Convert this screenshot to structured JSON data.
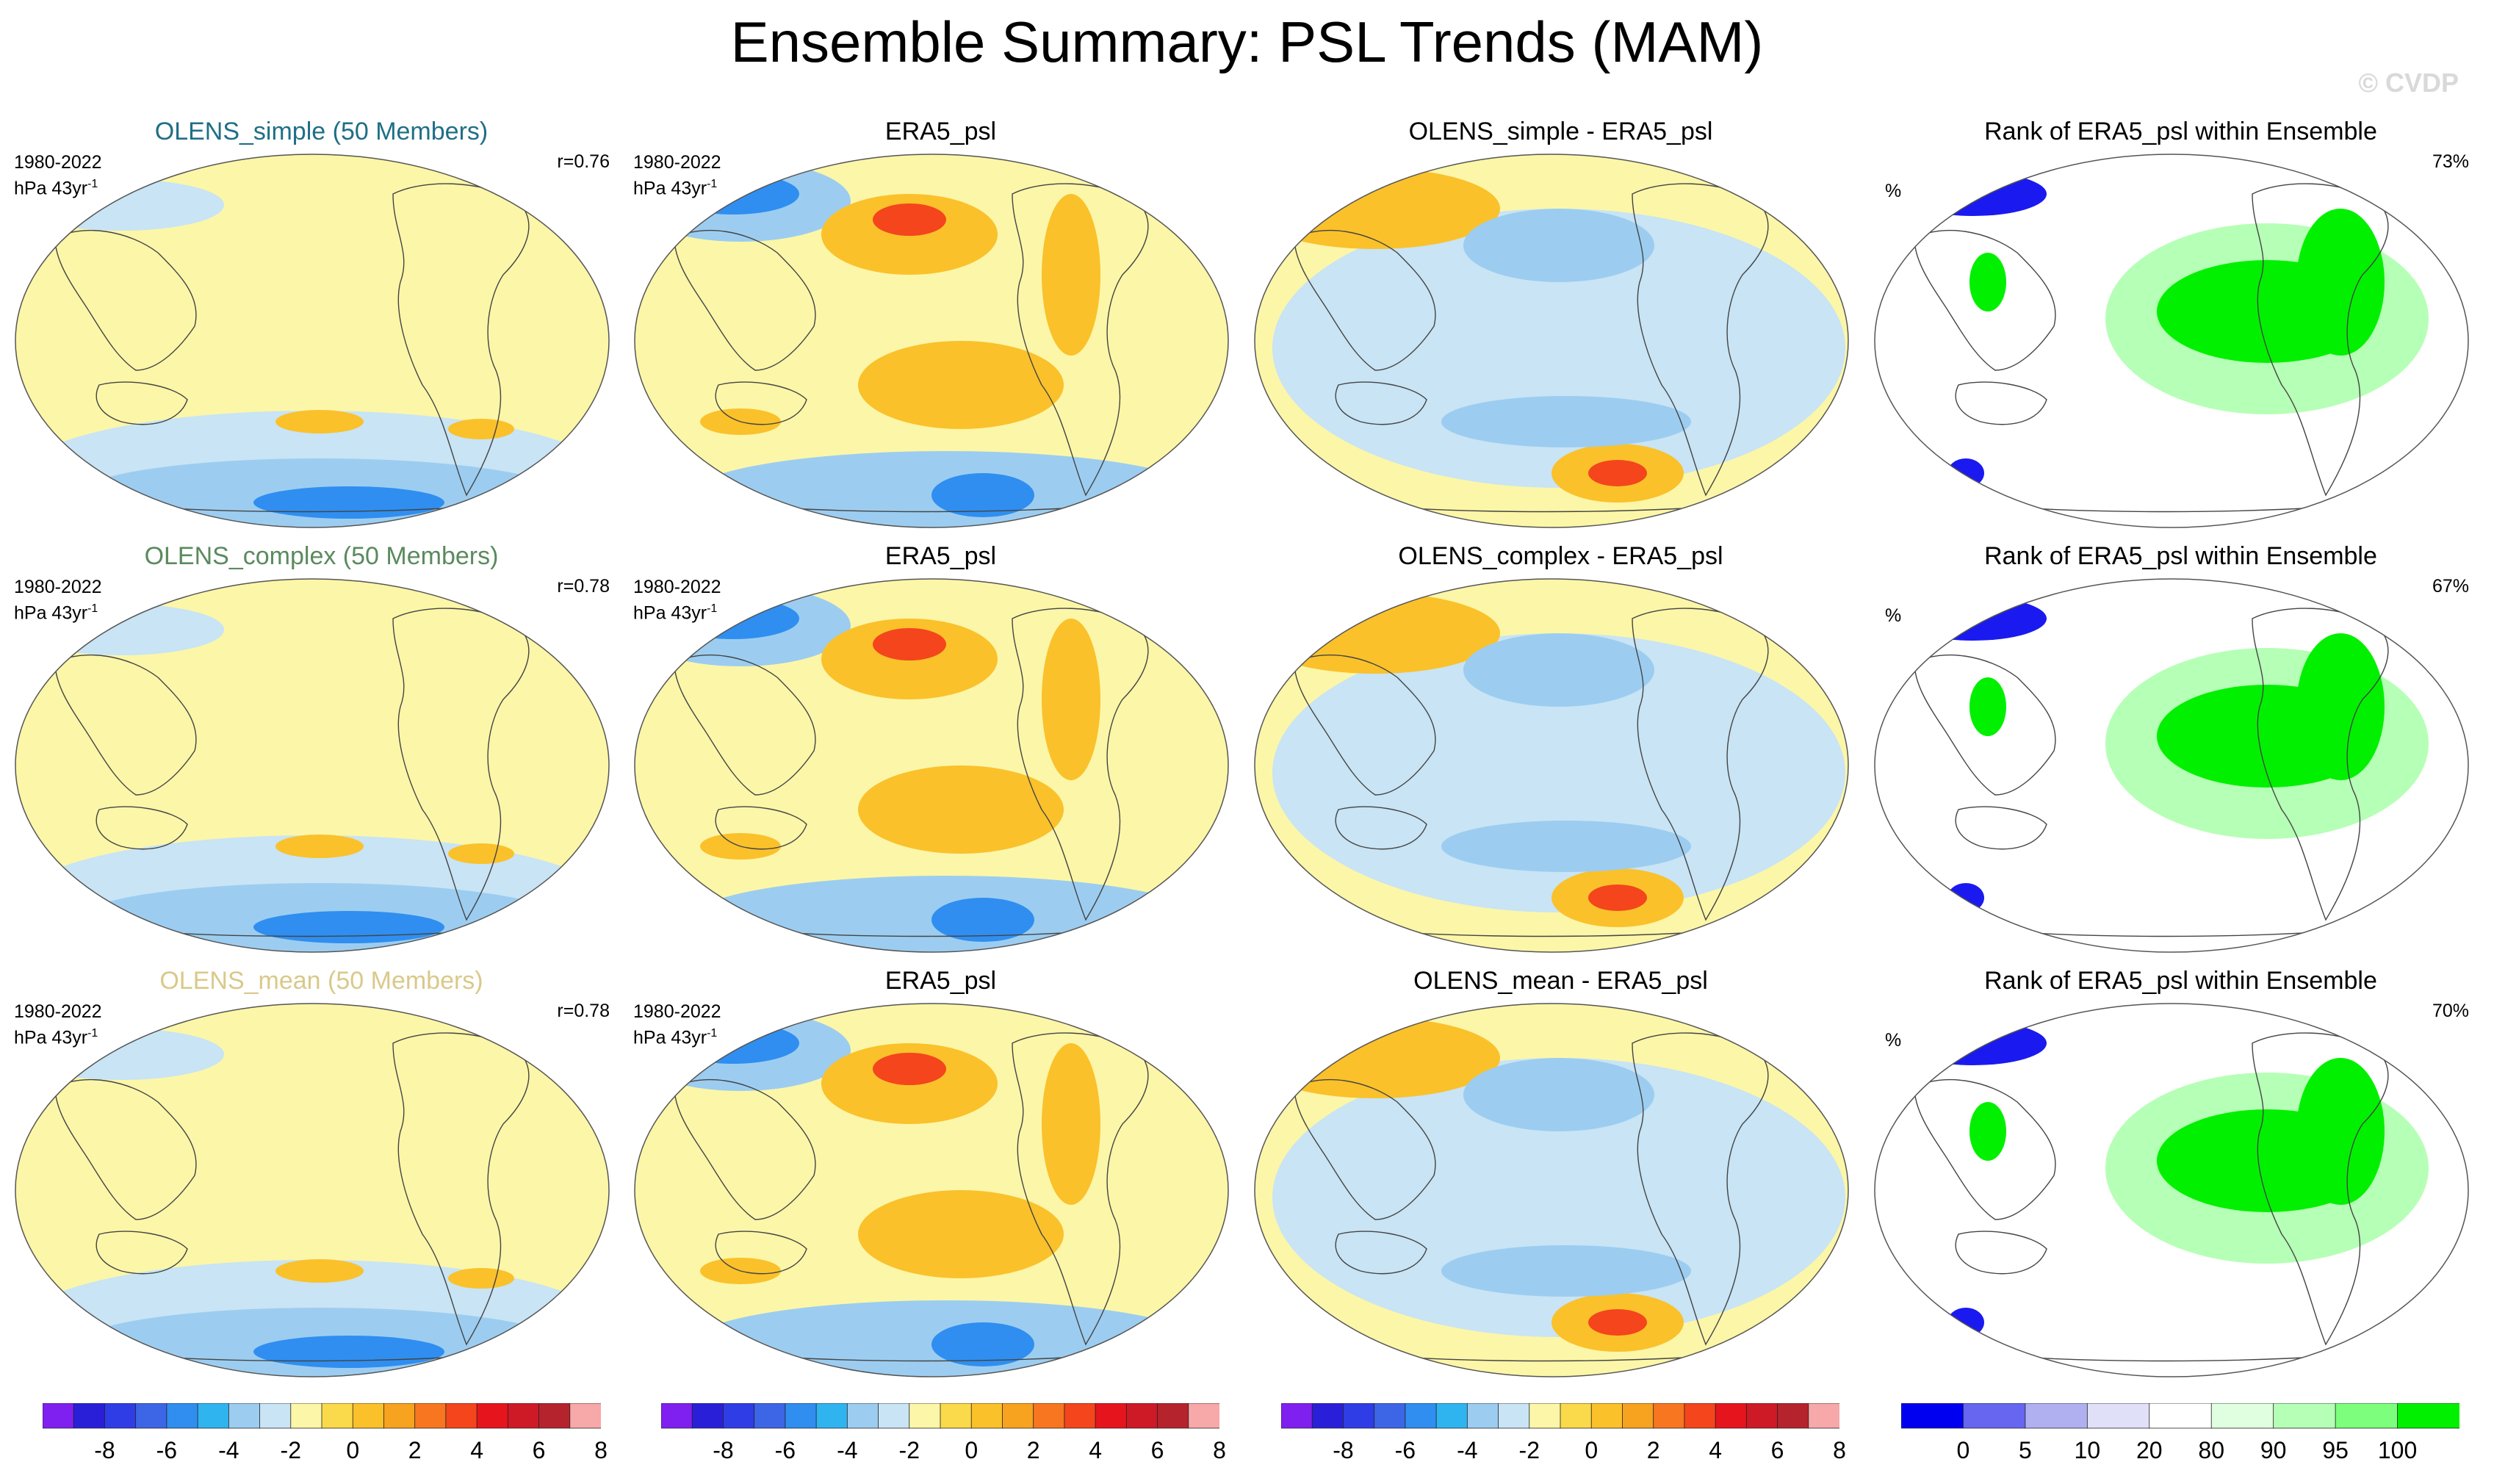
{
  "page": {
    "title": "Ensemble Summary: PSL Trends (MAM)",
    "watermark": "© CVDP"
  },
  "rows": [
    {
      "panels": [
        {
          "title": "OLENS_simple (50 Members)",
          "title_color": "#1f6f86",
          "period": "1980-2022",
          "units_base": "hPa 43yr",
          "units_sup": "-1",
          "extra": "r=0.76",
          "kind": "ens"
        },
        {
          "title": "ERA5_psl",
          "title_color": "#000000",
          "period": "1980-2022",
          "units_base": "hPa 43yr",
          "units_sup": "-1",
          "extra": "",
          "kind": "obs"
        },
        {
          "title": "OLENS_simple - ERA5_psl",
          "title_color": "#000000",
          "period": "",
          "units_base": "",
          "units_sup": "",
          "extra": "",
          "kind": "diff"
        },
        {
          "title": "Rank of ERA5_psl within Ensemble",
          "title_color": "#000000",
          "period": "",
          "units_base": "%",
          "units_sup": "",
          "extra": "73%",
          "kind": "rank"
        }
      ]
    },
    {
      "panels": [
        {
          "title": "OLENS_complex (50 Members)",
          "title_color": "#5b8a5e",
          "period": "1980-2022",
          "units_base": "hPa 43yr",
          "units_sup": "-1",
          "extra": "r=0.78",
          "kind": "ens"
        },
        {
          "title": "ERA5_psl",
          "title_color": "#000000",
          "period": "1980-2022",
          "units_base": "hPa 43yr",
          "units_sup": "-1",
          "extra": "",
          "kind": "obs"
        },
        {
          "title": "OLENS_complex - ERA5_psl",
          "title_color": "#000000",
          "period": "",
          "units_base": "",
          "units_sup": "",
          "extra": "",
          "kind": "diff"
        },
        {
          "title": "Rank of ERA5_psl within Ensemble",
          "title_color": "#000000",
          "period": "",
          "units_base": "%",
          "units_sup": "",
          "extra": "67%",
          "kind": "rank"
        }
      ]
    },
    {
      "panels": [
        {
          "title": "OLENS_mean (50 Members)",
          "title_color": "#d9c98a",
          "period": "1980-2022",
          "units_base": "hPa 43yr",
          "units_sup": "-1",
          "extra": "r=0.78",
          "kind": "ens"
        },
        {
          "title": "ERA5_psl",
          "title_color": "#000000",
          "period": "1980-2022",
          "units_base": "hPa 43yr",
          "units_sup": "-1",
          "extra": "",
          "kind": "obs"
        },
        {
          "title": "OLENS_mean - ERA5_psl",
          "title_color": "#000000",
          "period": "",
          "units_base": "",
          "units_sup": "",
          "extra": "",
          "kind": "diff"
        },
        {
          "title": "Rank of ERA5_psl within Ensemble",
          "title_color": "#000000",
          "period": "",
          "units_base": "%",
          "units_sup": "",
          "extra": "70%",
          "kind": "rank"
        }
      ]
    }
  ],
  "colorbars": [
    {
      "labels": [
        "-8",
        "-6",
        "-4",
        "-2",
        "0",
        "2",
        "4",
        "6",
        "8"
      ],
      "colors": [
        "#7f1ff0",
        "#2a1fd9",
        "#2f3de6",
        "#3d66e6",
        "#2f8ef0",
        "#2fb4f0",
        "#9ccdf0",
        "#c8e4f5",
        "#fcf6a8",
        "#fad94a",
        "#fac12b",
        "#f7a31f",
        "#f7761f",
        "#f4451c",
        "#e6141c",
        "#cd1a26",
        "#b5232d",
        "#f7a8a8"
      ]
    },
    {
      "labels": [
        "-8",
        "-6",
        "-4",
        "-2",
        "0",
        "2",
        "4",
        "6",
        "8"
      ],
      "colors": [
        "#7f1ff0",
        "#2a1fd9",
        "#2f3de6",
        "#3d66e6",
        "#2f8ef0",
        "#2fb4f0",
        "#9ccdf0",
        "#c8e4f5",
        "#fcf6a8",
        "#fad94a",
        "#fac12b",
        "#f7a31f",
        "#f7761f",
        "#f4451c",
        "#e6141c",
        "#cd1a26",
        "#b5232d",
        "#f7a8a8"
      ]
    },
    {
      "labels": [
        "-8",
        "-6",
        "-4",
        "-2",
        "0",
        "2",
        "4",
        "6",
        "8"
      ],
      "colors": [
        "#7f1ff0",
        "#2a1fd9",
        "#2f3de6",
        "#3d66e6",
        "#2f8ef0",
        "#2fb4f0",
        "#9ccdf0",
        "#c8e4f5",
        "#fcf6a8",
        "#fad94a",
        "#fac12b",
        "#f7a31f",
        "#f7761f",
        "#f4451c",
        "#e6141c",
        "#cd1a26",
        "#b5232d",
        "#f7a8a8"
      ]
    },
    {
      "labels": [
        "0",
        "5",
        "10",
        "20",
        "80",
        "90",
        "95",
        "100"
      ],
      "colors": [
        "#0000f0",
        "#6666f0",
        "#b0b0f0",
        "#e0e0f8",
        "#ffffff",
        "#e0ffe0",
        "#b6ffb6",
        "#7dff7d",
        "#00f000"
      ]
    }
  ],
  "palette": {
    "ens_bg": "#fcf6a8",
    "ens_blue": "#c8e4f5",
    "mid_blue": "#9ccdf0",
    "deep_blue": "#2f8ef0",
    "orange": "#fac12b",
    "red": "#f4451c",
    "rank_blue": "#1a1af0",
    "rank_green": "#00f000",
    "rank_lightgreen": "#b6ffb6"
  }
}
